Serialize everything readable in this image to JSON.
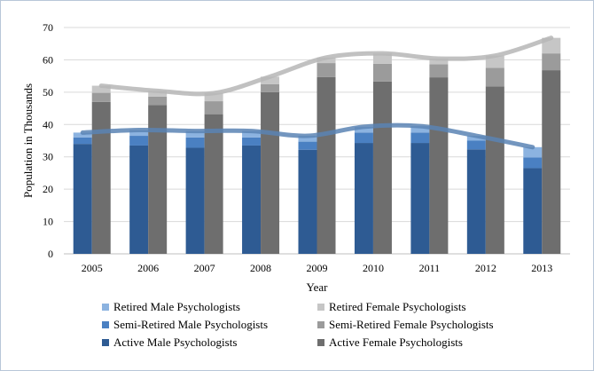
{
  "chart_data": {
    "type": "bar",
    "stacked": true,
    "categories": [
      "2005",
      "2006",
      "2007",
      "2008",
      "2009",
      "2010",
      "2011",
      "2012",
      "2013"
    ],
    "xlabel": "Year",
    "ylabel": "Population in Thousands",
    "ylim": [
      0,
      70
    ],
    "yticks": [
      "0",
      "10",
      "20",
      "30",
      "40",
      "50",
      "60",
      "70"
    ],
    "grid": "horizontal",
    "legend_position": "bottom",
    "groups": [
      {
        "gender": "male",
        "series": [
          {
            "name": "Active Male Psychologists",
            "color": "#2e5b93",
            "values": [
              34,
              33.5,
              32.8,
              33.5,
              32.2,
              34.3,
              34.3,
              32.3,
              26.5
            ]
          },
          {
            "name": "Semi-Retired Male Psychologists",
            "color": "#4a80c2",
            "values": [
              2,
              3,
              3.2,
              2.5,
              2.5,
              3.2,
              3.2,
              2.7,
              3.3
            ]
          },
          {
            "name": "Retired Male Psychologists",
            "color": "#8cb3e0",
            "values": [
              1.5,
              1.8,
              2,
              2,
              1.8,
              1.8,
              2,
              1.5,
              3.2
            ]
          }
        ]
      },
      {
        "gender": "female",
        "series": [
          {
            "name": "Active Female Psychologists",
            "color": "#6e6e6e",
            "values": [
              47,
              46,
              43.2,
              50,
              54.7,
              53.3,
              54.6,
              51.8,
              56.8
            ]
          },
          {
            "name": "Semi-Retired Female Psychologists",
            "color": "#9b9b9b",
            "values": [
              2.8,
              2.6,
              4,
              2.5,
              4.3,
              5.5,
              4,
              5.7,
              5.2
            ]
          },
          {
            "name": "Retired Female Psychologists",
            "color": "#c6c6c6",
            "values": [
              2.2,
              1.8,
              2.5,
              2.3,
              1.7,
              3.2,
              1.8,
              3.8,
              4.8
            ]
          }
        ]
      }
    ],
    "trend_lines": [
      {
        "group": "male",
        "color": "#5b84b4"
      },
      {
        "group": "female",
        "color": "#b6b6b6"
      }
    ],
    "legend": [
      "Retired Male Psychologists",
      "Retired Female Psychologists",
      "Semi-Retired Male Psychologists",
      "Semi-Retired Female Psychologists",
      "Active Male Psychologists",
      "Active Female Psychologists"
    ]
  }
}
